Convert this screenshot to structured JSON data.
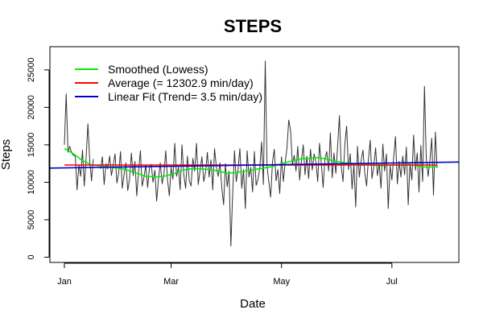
{
  "chart_data": {
    "type": "line",
    "title": "STEPS",
    "xlabel": "Date",
    "ylabel": "Steps",
    "x_ticks": [
      {
        "day": 0,
        "label": "Jan"
      },
      {
        "day": 59,
        "label": "Mar"
      },
      {
        "day": 120,
        "label": "May"
      },
      {
        "day": 181,
        "label": "Jul"
      }
    ],
    "y_ticks": [
      0,
      5000,
      10000,
      15000,
      20000,
      25000
    ],
    "xlim": [
      -8,
      218
    ],
    "ylim": [
      -700,
      28100
    ],
    "legend": {
      "position": "top-left",
      "entries": [
        {
          "label": "Smoothed (Lowess)",
          "color": "#00ee00"
        },
        {
          "label": "Average (= 12302.9 min/day)",
          "color": "#ff0000"
        },
        {
          "label": "Linear Fit (Trend= 3.5 min/day)",
          "color": "#0000cc"
        }
      ]
    },
    "series": [
      {
        "name": "Steps",
        "color": "#333333",
        "points": [
          [
            0,
            15000
          ],
          [
            1,
            21800
          ],
          [
            2,
            14000
          ],
          [
            3,
            14800
          ],
          [
            4,
            13900
          ],
          [
            5,
            13600
          ],
          [
            6,
            13500
          ],
          [
            7,
            9000
          ],
          [
            8,
            12300
          ],
          [
            9,
            10800
          ],
          [
            10,
            14300
          ],
          [
            11,
            9500
          ],
          [
            12,
            13300
          ],
          [
            13,
            17800
          ],
          [
            14,
            12900
          ],
          [
            15,
            10200
          ],
          [
            16,
            13100
          ],
          [
            20,
            11800
          ],
          [
            21,
            13400
          ],
          [
            22,
            9700
          ],
          [
            23,
            12500
          ],
          [
            24,
            11800
          ],
          [
            25,
            13500
          ],
          [
            26,
            10900
          ],
          [
            27,
            12300
          ],
          [
            28,
            13800
          ],
          [
            29,
            9900
          ],
          [
            30,
            11200
          ],
          [
            31,
            14100
          ],
          [
            32,
            9200
          ],
          [
            33,
            11100
          ],
          [
            34,
            12600
          ],
          [
            35,
            8900
          ],
          [
            36,
            10400
          ],
          [
            37,
            13900
          ],
          [
            38,
            10900
          ],
          [
            39,
            12800
          ],
          [
            40,
            8200
          ],
          [
            41,
            11400
          ],
          [
            42,
            14200
          ],
          [
            43,
            9500
          ],
          [
            44,
            10700
          ],
          [
            45,
            12300
          ],
          [
            46,
            9300
          ],
          [
            47,
            11900
          ],
          [
            48,
            12400
          ],
          [
            49,
            10000
          ],
          [
            50,
            11600
          ],
          [
            51,
            7500
          ],
          [
            52,
            10500
          ],
          [
            53,
            12600
          ],
          [
            54,
            9800
          ],
          [
            55,
            11100
          ],
          [
            56,
            14200
          ],
          [
            57,
            10300
          ],
          [
            58,
            8200
          ],
          [
            59,
            12000
          ],
          [
            60,
            10400
          ],
          [
            61,
            15200
          ],
          [
            62,
            10800
          ],
          [
            63,
            12000
          ],
          [
            64,
            9000
          ],
          [
            65,
            15000
          ],
          [
            66,
            11000
          ],
          [
            67,
            9200
          ],
          [
            68,
            13500
          ],
          [
            69,
            10200
          ],
          [
            70,
            9500
          ],
          [
            71,
            13200
          ],
          [
            72,
            11500
          ],
          [
            73,
            15200
          ],
          [
            74,
            9700
          ],
          [
            75,
            11600
          ],
          [
            76,
            13400
          ],
          [
            77,
            10100
          ],
          [
            78,
            11300
          ],
          [
            79,
            14000
          ],
          [
            80,
            10700
          ],
          [
            81,
            13000
          ],
          [
            82,
            9000
          ],
          [
            83,
            14500
          ],
          [
            84,
            12000
          ],
          [
            85,
            10800
          ],
          [
            86,
            12600
          ],
          [
            87,
            9300
          ],
          [
            88,
            7000
          ],
          [
            89,
            12500
          ],
          [
            90,
            9400
          ],
          [
            91,
            11500
          ],
          [
            92,
            1500
          ],
          [
            93,
            8400
          ],
          [
            94,
            14200
          ],
          [
            95,
            10100
          ],
          [
            96,
            11800
          ],
          [
            97,
            14500
          ],
          [
            98,
            9200
          ],
          [
            99,
            11700
          ],
          [
            100,
            6500
          ],
          [
            101,
            14200
          ],
          [
            102,
            10700
          ],
          [
            103,
            12000
          ],
          [
            104,
            8700
          ],
          [
            105,
            14100
          ],
          [
            106,
            9600
          ],
          [
            107,
            10400
          ],
          [
            108,
            11900
          ],
          [
            109,
            15400
          ],
          [
            110,
            9700
          ],
          [
            111,
            26200
          ],
          [
            112,
            12200
          ],
          [
            113,
            10000
          ],
          [
            114,
            8000
          ],
          [
            115,
            12700
          ],
          [
            116,
            14400
          ],
          [
            117,
            10200
          ],
          [
            118,
            11700
          ],
          [
            119,
            8500
          ],
          [
            120,
            13400
          ],
          [
            121,
            10100
          ],
          [
            122,
            12600
          ],
          [
            123,
            14600
          ],
          [
            124,
            18300
          ],
          [
            125,
            16900
          ],
          [
            126,
            12300
          ],
          [
            127,
            13600
          ],
          [
            128,
            11500
          ],
          [
            129,
            14800
          ],
          [
            130,
            10300
          ],
          [
            131,
            12800
          ],
          [
            132,
            15000
          ],
          [
            133,
            11000
          ],
          [
            134,
            13500
          ],
          [
            135,
            10500
          ],
          [
            136,
            14400
          ],
          [
            137,
            11600
          ],
          [
            138,
            13800
          ],
          [
            139,
            12700
          ],
          [
            140,
            10100
          ],
          [
            141,
            15200
          ],
          [
            142,
            12400
          ],
          [
            143,
            9300
          ],
          [
            144,
            13200
          ],
          [
            145,
            14100
          ],
          [
            146,
            11500
          ],
          [
            147,
            16600
          ],
          [
            148,
            10600
          ],
          [
            149,
            13900
          ],
          [
            150,
            11200
          ],
          [
            151,
            14800
          ],
          [
            152,
            18900
          ],
          [
            153,
            12100
          ],
          [
            154,
            10100
          ],
          [
            155,
            15100
          ],
          [
            156,
            17500
          ],
          [
            157,
            11700
          ],
          [
            158,
            13800
          ],
          [
            159,
            9100
          ],
          [
            160,
            12400
          ],
          [
            161,
            6700
          ],
          [
            162,
            14800
          ],
          [
            163,
            10700
          ],
          [
            164,
            12900
          ],
          [
            165,
            14300
          ],
          [
            166,
            11300
          ],
          [
            167,
            9500
          ],
          [
            168,
            13000
          ],
          [
            169,
            15600
          ],
          [
            170,
            10500
          ],
          [
            171,
            12200
          ],
          [
            172,
            14600
          ],
          [
            173,
            10900
          ],
          [
            174,
            12500
          ],
          [
            175,
            9200
          ],
          [
            176,
            15100
          ],
          [
            177,
            11500
          ],
          [
            178,
            13800
          ],
          [
            179,
            6500
          ],
          [
            180,
            12200
          ],
          [
            181,
            10300
          ],
          [
            182,
            13400
          ],
          [
            183,
            16100
          ],
          [
            184,
            9800
          ],
          [
            185,
            12800
          ],
          [
            186,
            10700
          ],
          [
            187,
            13500
          ],
          [
            188,
            11000
          ],
          [
            189,
            14700
          ],
          [
            190,
            7000
          ],
          [
            191,
            12500
          ],
          [
            192,
            10300
          ],
          [
            193,
            16300
          ],
          [
            194,
            11600
          ],
          [
            195,
            13900
          ],
          [
            196,
            8700
          ],
          [
            197,
            14900
          ],
          [
            198,
            10100
          ],
          [
            199,
            22800
          ],
          [
            200,
            13300
          ],
          [
            201,
            10800
          ],
          [
            202,
            12800
          ],
          [
            203,
            15900
          ],
          [
            204,
            8300
          ],
          [
            205,
            16700
          ],
          [
            206,
            11900
          ]
        ]
      },
      {
        "name": "Smoothed (Lowess)",
        "color": "#00ee00",
        "points": [
          [
            0,
            14500
          ],
          [
            5,
            13800
          ],
          [
            10,
            12900
          ],
          [
            15,
            12300
          ],
          [
            20,
            12200
          ],
          [
            25,
            12000
          ],
          [
            30,
            11900
          ],
          [
            35,
            11600
          ],
          [
            40,
            11200
          ],
          [
            45,
            10800
          ],
          [
            50,
            10700
          ],
          [
            55,
            10800
          ],
          [
            60,
            11100
          ],
          [
            65,
            11600
          ],
          [
            70,
            11800
          ],
          [
            75,
            11800
          ],
          [
            80,
            11700
          ],
          [
            85,
            11500
          ],
          [
            90,
            11200
          ],
          [
            95,
            11300
          ],
          [
            100,
            11500
          ],
          [
            105,
            11700
          ],
          [
            110,
            11900
          ],
          [
            115,
            12100
          ],
          [
            120,
            12500
          ],
          [
            125,
            12800
          ],
          [
            130,
            13100
          ],
          [
            135,
            13200
          ],
          [
            140,
            13300
          ],
          [
            145,
            13100
          ],
          [
            150,
            12800
          ],
          [
            155,
            12600
          ],
          [
            160,
            12500
          ],
          [
            165,
            12400
          ],
          [
            170,
            12300
          ],
          [
            175,
            12200
          ],
          [
            180,
            12300
          ],
          [
            185,
            12300
          ],
          [
            190,
            12400
          ],
          [
            195,
            12200
          ],
          [
            200,
            12000
          ],
          [
            206,
            12100
          ]
        ]
      },
      {
        "name": "Average (= 12302.9 min/day)",
        "color": "#ff0000",
        "points": [
          [
            0,
            12302.9
          ],
          [
            206,
            12302.9
          ]
        ]
      },
      {
        "name": "Linear Fit (Trend= 3.5 min/day)",
        "color": "#0000cc",
        "points": [
          [
            -8,
            11900
          ],
          [
            218,
            12700
          ]
        ]
      }
    ]
  }
}
